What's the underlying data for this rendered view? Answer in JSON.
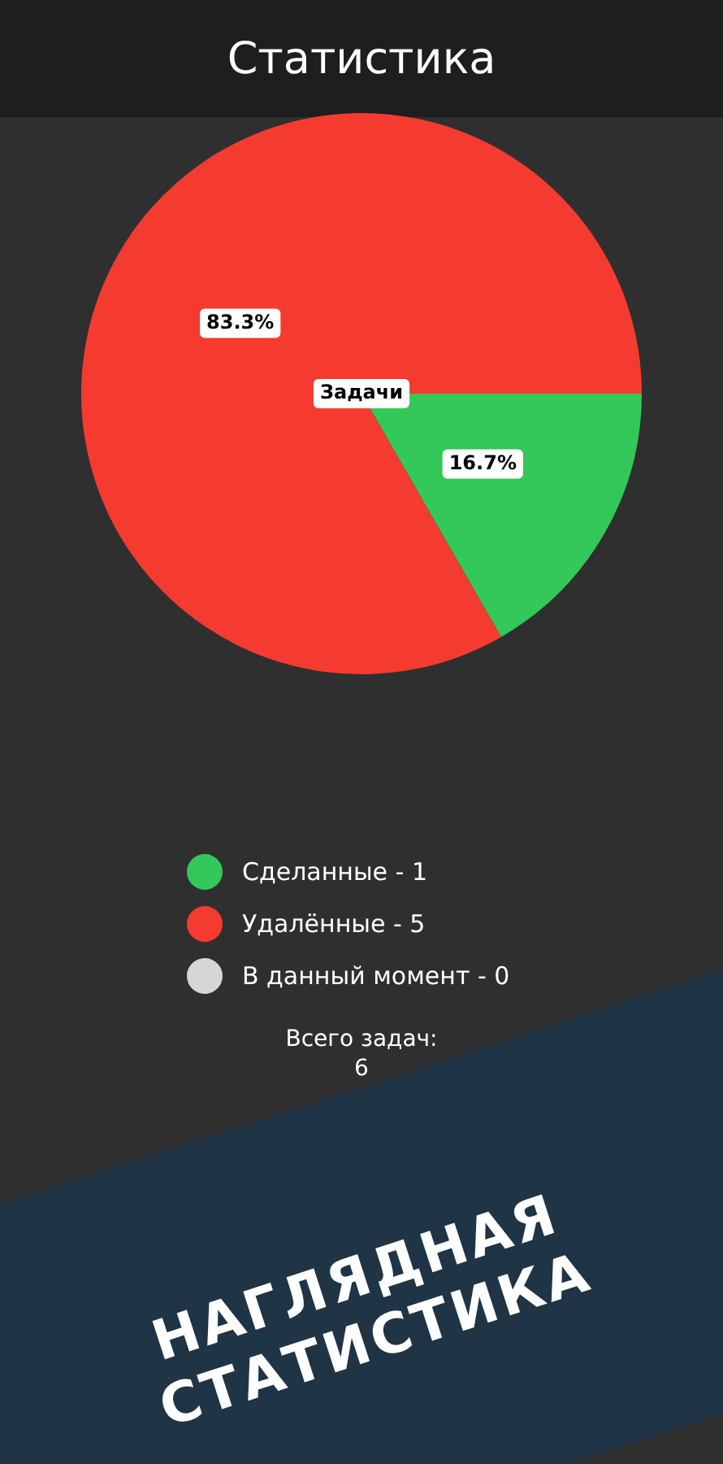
{
  "chart_data": {
    "type": "pie",
    "title": "Статистика",
    "categories": [
      "Сделанные - 1",
      "Удалённые - 5",
      "В данный момент - 0"
    ],
    "values": [
      16.7,
      83.3,
      0
    ],
    "colors": [
      "#34c759",
      "#f53b30",
      "#d6d6d6"
    ],
    "value_labels": [
      "16.7%",
      "83.3%",
      null
    ],
    "legend": "bottom",
    "annotations": [
      "Задачи",
      "Всего задач:\n6",
      "НАГЛЯДНАЯ\nСТАТИСТИКА"
    ]
  }
}
